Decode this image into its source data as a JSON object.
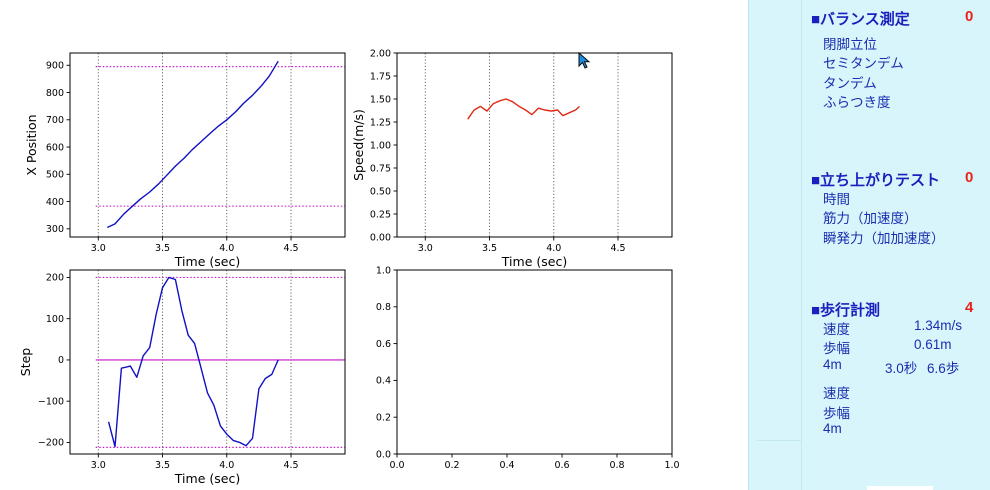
{
  "chart_data": [
    {
      "type": "line",
      "xlabel": "Time (sec)",
      "ylabel": "X Position",
      "xlim": [
        2.78,
        4.92
      ],
      "ylim": [
        270,
        945
      ],
      "xticks": [
        3.0,
        3.5,
        4.0,
        4.5
      ],
      "xtick_labels": [
        "3.0",
        "3.5",
        "4.0",
        "4.5"
      ],
      "yticks": [
        300,
        400,
        500,
        600,
        700,
        800,
        900
      ],
      "ytick_labels": [
        "300",
        "400",
        "500",
        "600",
        "700",
        "800",
        "900"
      ],
      "hlines": [
        895,
        383
      ],
      "series": [
        {
          "color": "#1111c4",
          "x": [
            3.07,
            3.13,
            3.2,
            3.27,
            3.33,
            3.4,
            3.47,
            3.53,
            3.6,
            3.67,
            3.73,
            3.8,
            3.87,
            3.93,
            4.0,
            4.07,
            4.13,
            4.2,
            4.27,
            4.33,
            4.4
          ],
          "y": [
            305,
            318,
            355,
            385,
            410,
            435,
            465,
            495,
            530,
            560,
            590,
            620,
            650,
            675,
            700,
            730,
            760,
            790,
            825,
            860,
            915
          ]
        }
      ]
    },
    {
      "type": "line",
      "xlabel": "Time (sec)",
      "ylabel": "Speed(m/s)",
      "xlim": [
        2.78,
        4.92
      ],
      "ylim": [
        0.0,
        2.0
      ],
      "xticks": [
        3.0,
        3.5,
        4.0,
        4.5
      ],
      "xtick_labels": [
        "3.0",
        "3.5",
        "4.0",
        "4.5"
      ],
      "yticks": [
        0.0,
        0.25,
        0.5,
        0.75,
        1.0,
        1.25,
        1.5,
        1.75,
        2.0
      ],
      "ytick_labels": [
        "0.00",
        "0.25",
        "0.50",
        "0.75",
        "1.00",
        "1.25",
        "1.50",
        "1.75",
        "2.00"
      ],
      "hlines": [],
      "series": [
        {
          "color": "#e02a16",
          "x": [
            3.33,
            3.38,
            3.43,
            3.48,
            3.53,
            3.58,
            3.63,
            3.68,
            3.73,
            3.78,
            3.83,
            3.88,
            3.93,
            3.98,
            4.03,
            4.07,
            4.12,
            4.17,
            4.2
          ],
          "y": [
            1.28,
            1.38,
            1.42,
            1.37,
            1.45,
            1.48,
            1.5,
            1.47,
            1.42,
            1.38,
            1.33,
            1.4,
            1.38,
            1.37,
            1.38,
            1.32,
            1.35,
            1.38,
            1.42
          ]
        }
      ]
    },
    {
      "type": "line",
      "xlabel": "Time (sec)",
      "ylabel": "Step",
      "xlim": [
        2.78,
        4.92
      ],
      "ylim": [
        -228,
        218
      ],
      "xticks": [
        3.0,
        3.5,
        4.0,
        4.5
      ],
      "xtick_labels": [
        "3.0",
        "3.5",
        "4.0",
        "4.5"
      ],
      "yticks": [
        -200,
        -100,
        0,
        100,
        200
      ],
      "ytick_labels": [
        "−200",
        "−100",
        "0",
        "100",
        "200"
      ],
      "hlines": [
        200,
        -212
      ],
      "zeroline": 0,
      "series": [
        {
          "color": "#1111c4",
          "x": [
            3.08,
            3.13,
            3.18,
            3.25,
            3.3,
            3.35,
            3.4,
            3.45,
            3.5,
            3.55,
            3.6,
            3.65,
            3.7,
            3.75,
            3.8,
            3.85,
            3.9,
            3.95,
            4.0,
            4.05,
            4.1,
            4.15,
            4.2,
            4.25,
            4.3,
            4.35,
            4.4
          ],
          "y": [
            -150,
            -210,
            -20,
            -15,
            -42,
            10,
            30,
            110,
            175,
            200,
            195,
            120,
            60,
            40,
            -20,
            -80,
            -110,
            -160,
            -180,
            -195,
            -200,
            -208,
            -190,
            -70,
            -45,
            -35,
            0
          ]
        }
      ]
    },
    {
      "type": "line",
      "xlabel": "",
      "ylabel": "",
      "xlim": [
        0.0,
        1.0
      ],
      "ylim": [
        0.0,
        1.0
      ],
      "xticks": [
        0.0,
        0.2,
        0.4,
        0.6,
        0.8,
        1.0
      ],
      "xtick_labels": [
        "0.0",
        "0.2",
        "0.4",
        "0.6",
        "0.8",
        "1.0"
      ],
      "yticks": [
        0.0,
        0.2,
        0.4,
        0.6,
        0.8,
        1.0
      ],
      "ytick_labels": [
        "0.0",
        "0.2",
        "0.4",
        "0.6",
        "0.8",
        "1.0"
      ],
      "hlines": [],
      "series": []
    }
  ],
  "panel": {
    "balance": {
      "title": "■バランス測定",
      "count": "0",
      "items": [
        "閉脚立位",
        "セミタンデム",
        "タンデム",
        "ふらつき度"
      ]
    },
    "standup": {
      "title": "■立ち上がりテスト",
      "count": "0",
      "items": [
        "時間",
        "筋力（加速度）",
        "瞬発力（加加速度）"
      ]
    },
    "walk": {
      "title": "■歩行計測",
      "count": "4",
      "speed_label": "速度",
      "speed_value": "1.34m/s",
      "stride_label": "歩幅",
      "stride_value": "0.61m",
      "dist_label": "4m",
      "time_value": "3.0秒",
      "steps_value": "6.6歩",
      "extra_items": [
        "速度",
        "歩幅",
        "4m"
      ]
    }
  },
  "colors": {
    "panel_bg": "#d8f5fb",
    "panel_text": "#1b2eb0",
    "count_red": "#e8241a",
    "hline_magenta": "#cc1fcc"
  }
}
